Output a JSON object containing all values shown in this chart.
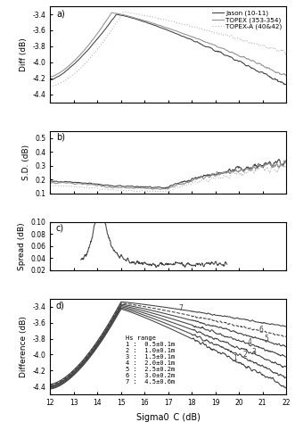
{
  "x_range": [
    12,
    22
  ],
  "panel_labels": [
    "a)",
    "b)",
    "c)",
    "d)"
  ],
  "xlabel": "Sigma0_C (dB)",
  "panel_a": {
    "ylabel": "Diff (dB)",
    "ylim": [
      -4.5,
      -3.3
    ],
    "yticks": [
      -4.4,
      -4.2,
      -4.0,
      -3.8,
      -3.6,
      -3.4
    ],
    "legend": [
      "Jason (10-11)",
      "TOPEX (353-354)",
      "TOPEX-A (40&42)"
    ]
  },
  "panel_b": {
    "ylabel": "S.D. (dB)",
    "ylim": [
      0.1,
      0.55
    ],
    "yticks": [
      0.1,
      0.2,
      0.3,
      0.4,
      0.5
    ]
  },
  "panel_c": {
    "ylabel": "Spread (dB)",
    "ylim": [
      0.02,
      0.1
    ],
    "yticks": [
      0.02,
      0.04,
      0.06,
      0.08,
      0.1
    ]
  },
  "panel_d": {
    "ylabel": "Difference (dB)",
    "ylim": [
      -4.5,
      -3.3
    ],
    "yticks": [
      -4.4,
      -4.2,
      -4.0,
      -3.8,
      -3.6,
      -3.4
    ],
    "hs_labels": [
      "Hs range",
      "1 :  0.5±0.1m",
      "2 :  1.0±0.1m",
      "3 :  1.5±0.1m",
      "4 :  2.0±0.1m",
      "5 :  2.5±0.2m",
      "6 :  3.0±0.2m",
      "7 :  4.5±0.6m"
    ]
  },
  "colors": {
    "jason": "#404040",
    "topex": "#909090",
    "topex_a": "#b0b0b0"
  }
}
